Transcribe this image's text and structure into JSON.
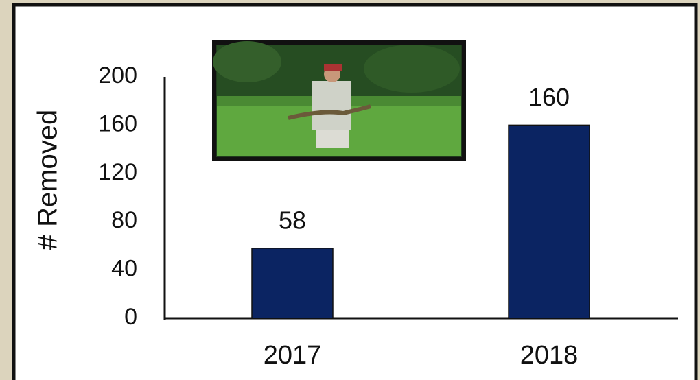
{
  "chart_data": {
    "type": "bar",
    "y_label": "# Removed",
    "categories": [
      "2017",
      "2018"
    ],
    "values": [
      58,
      160
    ],
    "color": "#0b2462",
    "ylim": [
      0,
      200
    ],
    "yticks": [
      0,
      40,
      80,
      120,
      160,
      200
    ],
    "grid": false
  }
}
